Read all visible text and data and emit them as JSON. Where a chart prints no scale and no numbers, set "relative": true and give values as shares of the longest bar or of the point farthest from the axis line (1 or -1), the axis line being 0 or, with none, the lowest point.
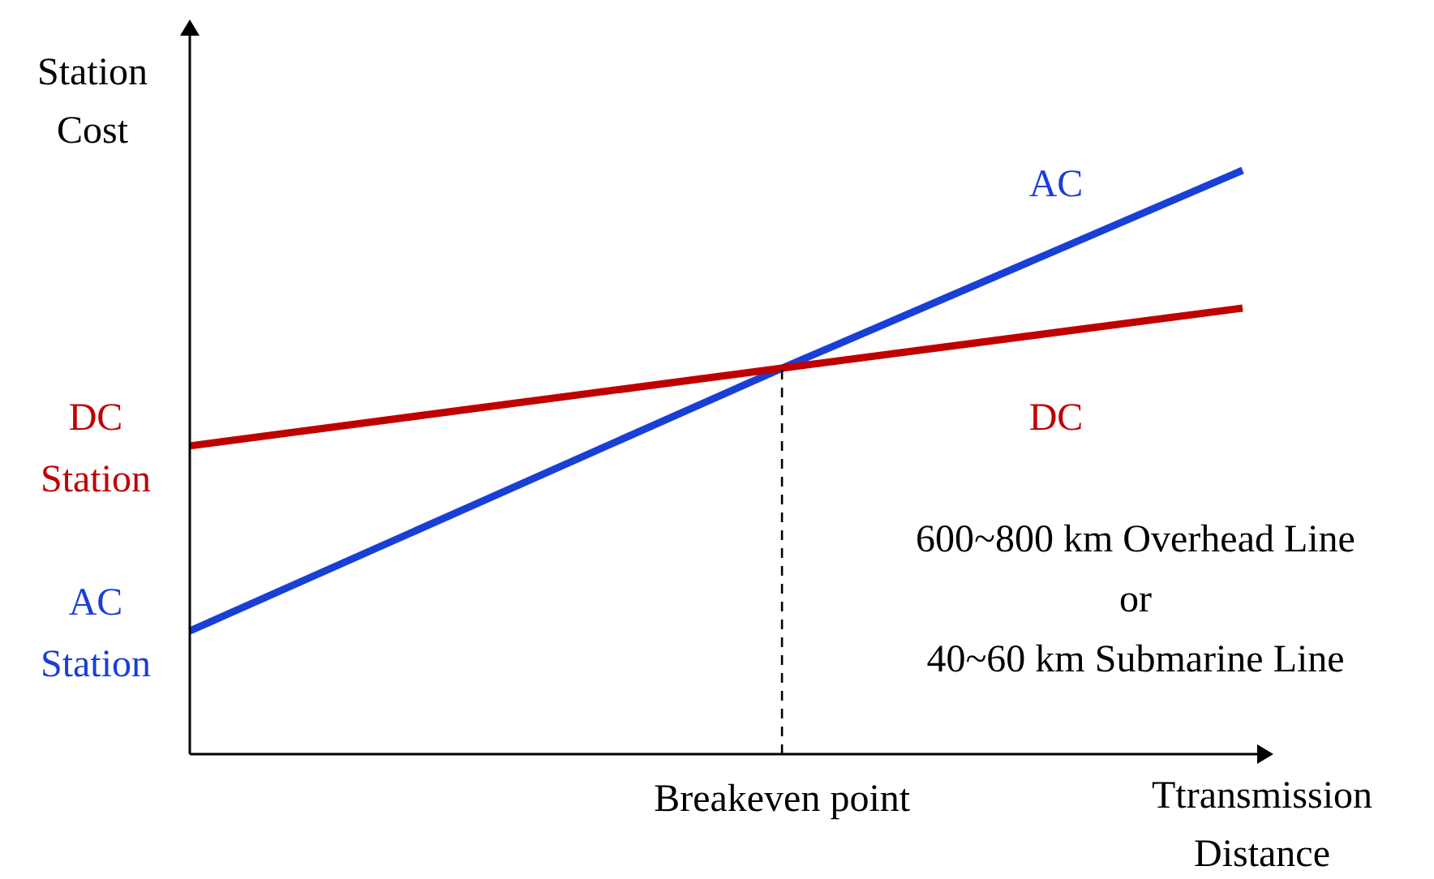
{
  "chart_data": {
    "type": "line",
    "relative": true,
    "xlabel": "Ttransmission Distance",
    "ylabel": "Station Cost",
    "line_style": "solid",
    "categories": [
      null,
      null,
      null,
      null,
      null,
      null,
      null,
      null,
      null,
      null,
      null,
      null,
      null,
      null,
      null,
      null,
      null
    ],
    "series": [
      {
        "name": "AC",
        "color": "#1a3fd6",
        "values": [
          0.211,
          null,
          null,
          null,
          null,
          null,
          null,
          null,
          null,
          0.661,
          null,
          null,
          null,
          null,
          null,
          null,
          1
        ]
      },
      {
        "name": "DC",
        "color": "#c00000",
        "values": [
          0.528,
          null,
          null,
          null,
          null,
          null,
          null,
          null,
          null,
          0.661,
          null,
          null,
          null,
          null,
          null,
          null,
          0.764
        ]
      }
    ],
    "annotations": [
      {
        "text": "Breakeven point",
        "y": 0.661
      },
      "DC Station",
      "AC Station",
      "600~800 km Overhead Line\nor\n40~60 km Submarine Line"
    ]
  }
}
